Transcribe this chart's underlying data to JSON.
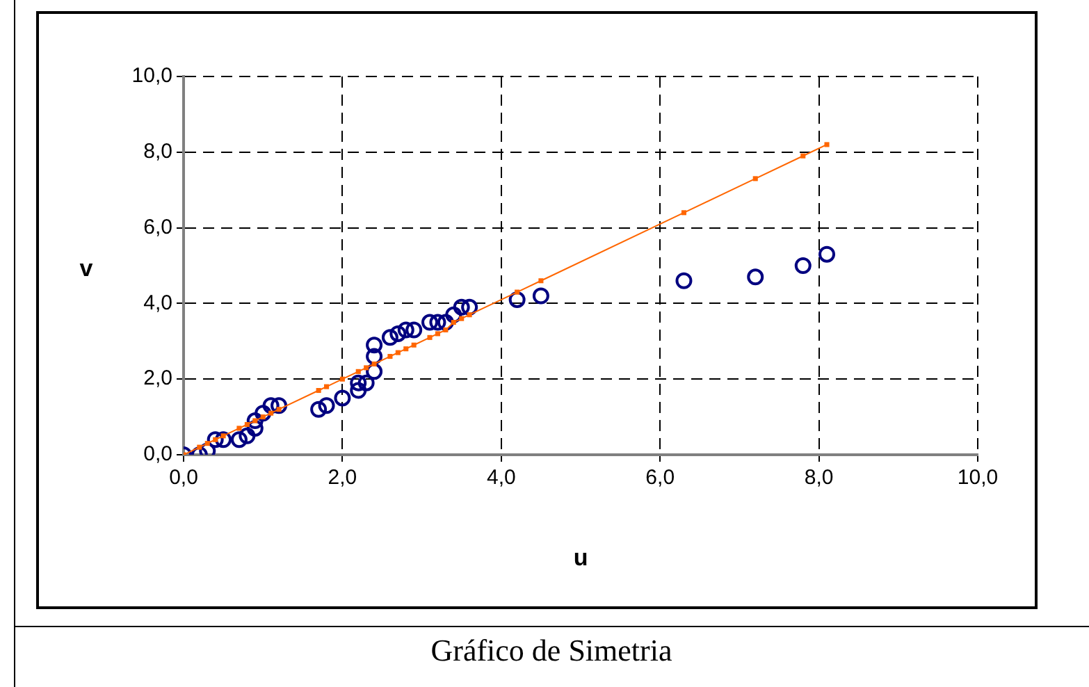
{
  "chart_data": {
    "type": "scatter",
    "title": "Gráfico de Simetria",
    "xlabel": "u",
    "ylabel": "v",
    "xlim": [
      0,
      10
    ],
    "ylim": [
      0,
      10
    ],
    "xticks": [
      {
        "value": 0,
        "label": "0,0"
      },
      {
        "value": 2,
        "label": "2,0"
      },
      {
        "value": 4,
        "label": "4,0"
      },
      {
        "value": 6,
        "label": "6,0"
      },
      {
        "value": 8,
        "label": "8,0"
      },
      {
        "value": 10,
        "label": "10,0"
      }
    ],
    "yticks": [
      {
        "value": 0,
        "label": "0,0"
      },
      {
        "value": 2,
        "label": "2,0"
      },
      {
        "value": 4,
        "label": "4,0"
      },
      {
        "value": 6,
        "label": "6,0"
      },
      {
        "value": 8,
        "label": "8,0"
      },
      {
        "value": 10,
        "label": "10,0"
      }
    ],
    "grid": true,
    "legend": false,
    "series": [
      {
        "type": "scatter",
        "color": "#000080",
        "marker": "circle",
        "x": [
          0,
          0.2,
          0.3,
          0.4,
          0.5,
          0.7,
          0.8,
          0.9,
          0.9,
          1.0,
          1.1,
          1.2,
          1.7,
          1.8,
          2.0,
          2.2,
          2.2,
          2.3,
          2.4,
          2.4,
          2.4,
          2.6,
          2.7,
          2.8,
          2.9,
          3.1,
          3.2,
          3.3,
          3.4,
          3.5,
          3.6,
          4.2,
          4.5,
          6.3,
          7.2,
          7.8,
          8.1
        ],
        "values": [
          0,
          0,
          0.1,
          0.4,
          0.4,
          0.4,
          0.5,
          0.7,
          0.9,
          1.1,
          1.3,
          1.3,
          1.2,
          1.3,
          1.5,
          1.7,
          1.9,
          1.9,
          2.2,
          2.6,
          2.9,
          3.1,
          3.2,
          3.3,
          3.3,
          3.5,
          3.5,
          3.5,
          3.7,
          3.9,
          3.9,
          4.1,
          4.2,
          4.6,
          4.7,
          5.0,
          5.3
        ]
      },
      {
        "type": "line",
        "color": "#ff6600",
        "marker": "square",
        "line_style": "solid",
        "x": [
          0,
          0.2,
          0.3,
          0.4,
          0.5,
          0.7,
          0.8,
          0.9,
          1.0,
          1.1,
          1.2,
          1.7,
          1.8,
          2.0,
          2.2,
          2.3,
          2.4,
          2.6,
          2.7,
          2.8,
          2.9,
          3.1,
          3.2,
          3.3,
          3.4,
          3.5,
          3.6,
          4.2,
          4.5,
          6.3,
          7.2,
          7.8,
          8.1
        ],
        "values": [
          0,
          0.2,
          0.3,
          0.4,
          0.5,
          0.7,
          0.8,
          0.9,
          1.0,
          1.1,
          1.2,
          1.7,
          1.8,
          2.0,
          2.2,
          2.3,
          2.4,
          2.6,
          2.7,
          2.8,
          2.9,
          3.1,
          3.2,
          3.3,
          3.5,
          3.6,
          3.7,
          4.3,
          4.6,
          6.4,
          7.3,
          7.9,
          8.2
        ]
      }
    ]
  }
}
